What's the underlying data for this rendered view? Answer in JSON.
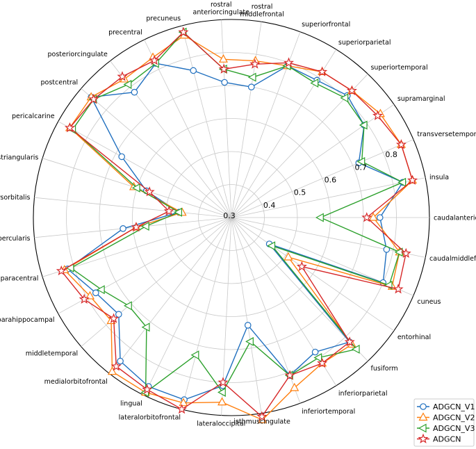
{
  "chart_data": {
    "type": "radar",
    "title": "",
    "categories": [
      "caudalanteriorcingulate",
      "caudalmiddlefrontal",
      "cuneus",
      "entorhinal",
      "fusiform",
      "inferiorparietal",
      "inferiortemporal",
      "isthmuscingulate",
      "lateraloccipital",
      "lateralorbitofrontal",
      "lingual",
      "medialorbitofrontal",
      "middletemporal",
      "parahippocampal",
      "paracentral",
      "parsopercularis",
      "parsorbitalis",
      "parstriangularis",
      "pericalcarine",
      "postcentral",
      "posteriorcingulate",
      "precentral",
      "precuneus",
      "rostral\nanteriorcingulate",
      "rostral\nmiddlefrontal",
      "superiorfrontal",
      "superiorparietal",
      "superiortemporal",
      "supramarginal",
      "transversetemporal",
      "insula"
    ],
    "rlim": [
      0.3,
      0.9
    ],
    "rticks": [
      0.4,
      0.5,
      0.6,
      0.7,
      0.8
    ],
    "rtick_labels": [
      "0.4",
      "0.5",
      "0.6",
      "0.7",
      "0.8"
    ],
    "center_label": "0.3",
    "grid": true,
    "legend_position": "bottom-right",
    "series": [
      {
        "name": "ADGCN_V1",
        "color": "#1f6fbf",
        "marker": "circle",
        "values": [
          0.75,
          0.78,
          0.8,
          0.44,
          0.82,
          0.78,
          0.81,
          0.63,
          0.81,
          0.87,
          0.87,
          0.85,
          0.75,
          0.77,
          0.82,
          0.63,
          0.46,
          0.57,
          0.68,
          0.86,
          0.78,
          0.82,
          0.76,
          0.71,
          0.7,
          0.79,
          0.79,
          0.81,
          0.79,
          0.72,
          0.83
        ]
      },
      {
        "name": "ADGCN_V2",
        "color": "#ff7f0e",
        "marker": "triangle-up",
        "values": [
          0.73,
          0.82,
          0.83,
          0.51,
          0.83,
          0.82,
          0.85,
          0.92,
          0.86,
          0.88,
          0.89,
          0.89,
          0.78,
          0.79,
          0.83,
          0.59,
          0.45,
          0.61,
          0.86,
          0.86,
          0.83,
          0.84,
          0.87,
          0.78,
          0.78,
          0.79,
          0.82,
          0.83,
          0.85,
          0.86,
          0.86
        ]
      },
      {
        "name": "ADGCN_V3",
        "color": "#2ca02c",
        "marker": "triangle-left",
        "values": [
          0.57,
          0.82,
          0.82,
          0.45,
          0.85,
          0.8,
          0.81,
          0.68,
          0.83,
          0.73,
          0.89,
          0.72,
          0.71,
          0.75,
          0.81,
          0.56,
          0.46,
          0.6,
          0.85,
          0.85,
          0.81,
          0.82,
          0.88,
          0.75,
          0.73,
          0.79,
          0.78,
          0.8,
          0.79,
          0.73,
          0.83
        ]
      },
      {
        "name": "ADGCN",
        "color": "#d62728",
        "marker": "star",
        "values": [
          0.71,
          0.84,
          0.85,
          0.56,
          0.82,
          0.82,
          0.81,
          0.91,
          0.8,
          0.9,
          0.88,
          0.87,
          0.77,
          0.81,
          0.84,
          0.59,
          0.49,
          0.56,
          0.86,
          0.85,
          0.84,
          0.83,
          0.88,
          0.75,
          0.77,
          0.8,
          0.82,
          0.83,
          0.84,
          0.86,
          0.86
        ]
      }
    ]
  }
}
